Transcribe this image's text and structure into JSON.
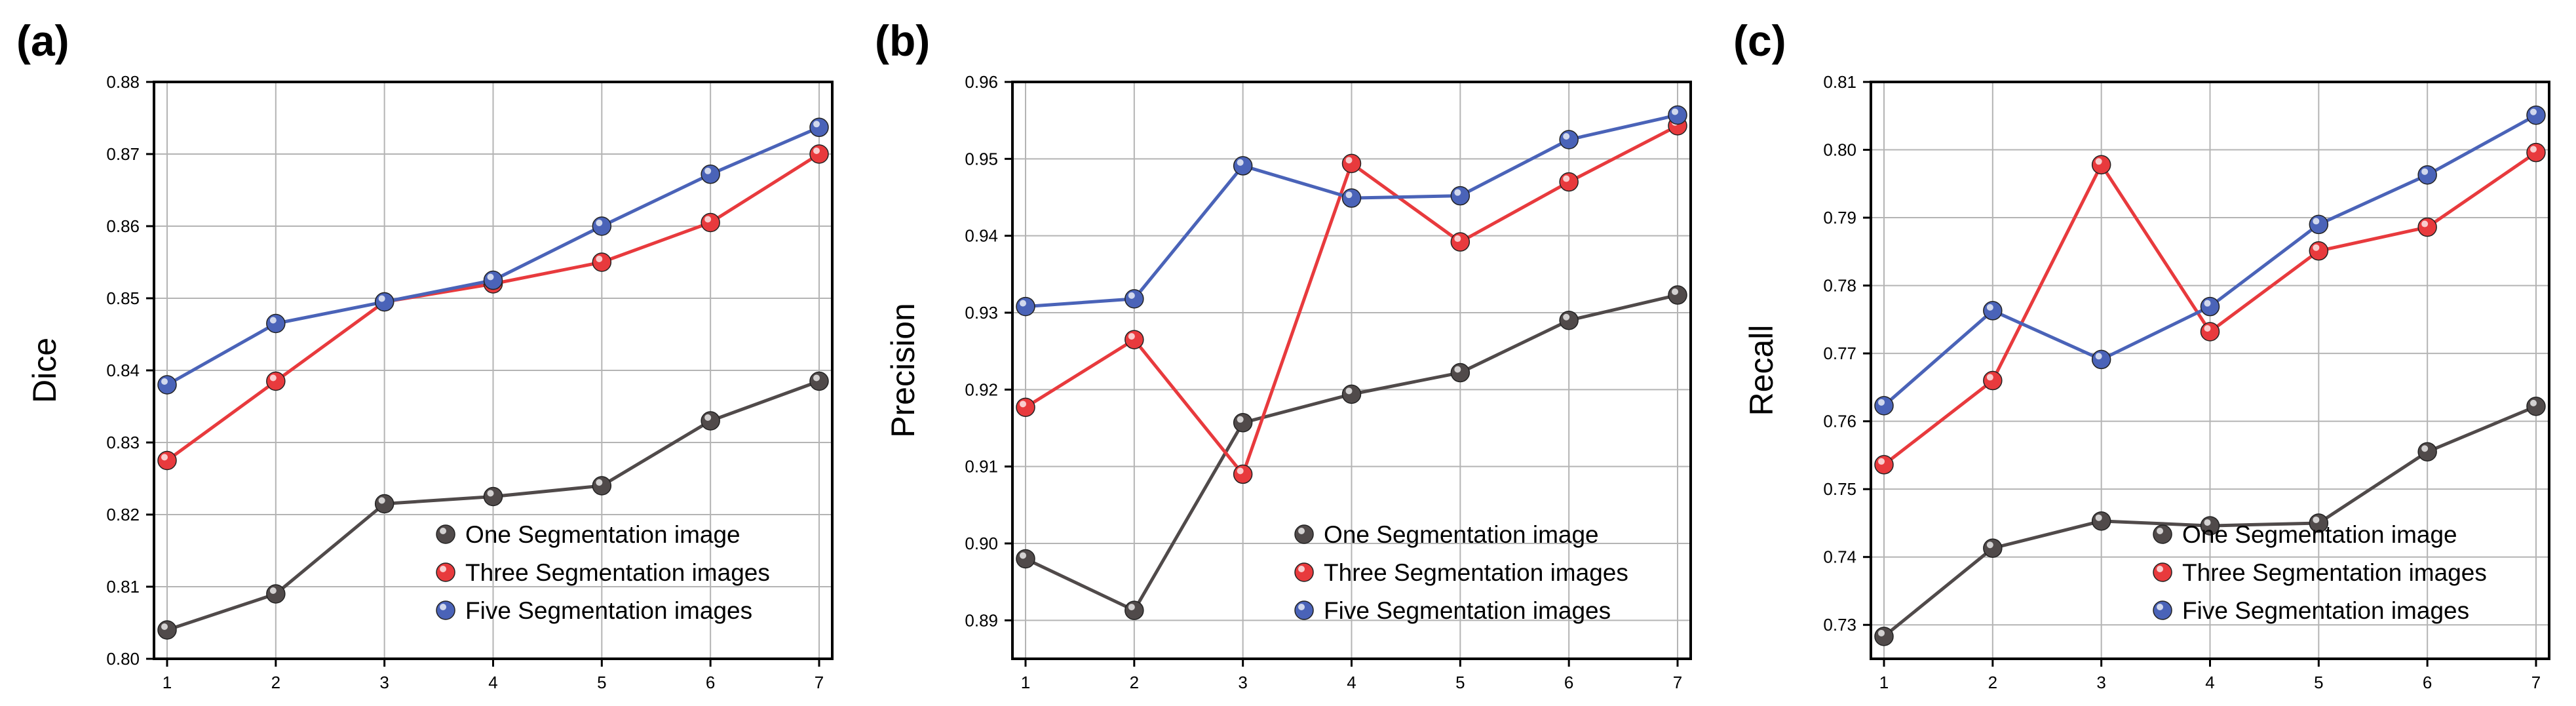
{
  "colors": {
    "one": "#504a4a",
    "three": "#e83a3d",
    "five": "#4a63b8",
    "grid": "#b4b4b4",
    "axis": "#000000"
  },
  "chart_data": [
    {
      "type": "line",
      "panel_label": "(a)",
      "ylabel": "Dice",
      "xlabel": "",
      "categories": [
        1,
        2,
        3,
        4,
        5,
        6,
        7
      ],
      "ylim": [
        0.8,
        0.88
      ],
      "yticks": [
        "0.80",
        "0.81",
        "0.82",
        "0.83",
        "0.84",
        "0.85",
        "0.86",
        "0.87",
        "0.88"
      ],
      "grid": true,
      "legend_position": "bottom-right",
      "series": [
        {
          "name": "One Segmentation image",
          "color_key": "one",
          "values": [
            0.804,
            0.809,
            0.8215,
            0.8225,
            0.824,
            0.833,
            0.8385
          ]
        },
        {
          "name": "Three Segmentation images",
          "color_key": "three",
          "values": [
            0.8275,
            0.8385,
            0.8495,
            0.852,
            0.855,
            0.8605,
            0.87
          ]
        },
        {
          "name": "Five Segmentation images",
          "color_key": "five",
          "values": [
            0.838,
            0.8465,
            0.8495,
            0.8525,
            0.86,
            0.8672,
            0.8737
          ]
        }
      ]
    },
    {
      "type": "line",
      "panel_label": "(b)",
      "ylabel": "Precision",
      "xlabel": "",
      "categories": [
        1,
        2,
        3,
        4,
        5,
        6,
        7
      ],
      "ylim": [
        0.885,
        0.96
      ],
      "yticks": [
        "0.89",
        "0.90",
        "0.91",
        "0.92",
        "0.93",
        "0.94",
        "0.95",
        "0.96"
      ],
      "grid": true,
      "legend_position": "bottom-right",
      "series": [
        {
          "name": "One Segmentation image",
          "color_key": "one",
          "values": [
            0.898,
            0.8913,
            0.9157,
            0.9194,
            0.9222,
            0.929,
            0.9323
          ]
        },
        {
          "name": "Three Segmentation images",
          "color_key": "three",
          "values": [
            0.9177,
            0.9265,
            0.909,
            0.9494,
            0.9392,
            0.947,
            0.9543
          ]
        },
        {
          "name": "Five Segmentation images",
          "color_key": "five",
          "values": [
            0.9308,
            0.9318,
            0.9491,
            0.9449,
            0.9452,
            0.9525,
            0.9557
          ]
        }
      ]
    },
    {
      "type": "line",
      "panel_label": "(c)",
      "ylabel": "Recall",
      "xlabel": "",
      "categories": [
        1,
        2,
        3,
        4,
        5,
        6,
        7
      ],
      "ylim": [
        0.725,
        0.81
      ],
      "yticks": [
        "0.73",
        "0.74",
        "0.75",
        "0.76",
        "0.77",
        "0.78",
        "0.79",
        "0.80",
        "0.81"
      ],
      "grid": true,
      "legend_position": "bottom-right",
      "series": [
        {
          "name": "One Segmentation image",
          "color_key": "one",
          "values": [
            0.7283,
            0.7413,
            0.7453,
            0.7446,
            0.745,
            0.7555,
            0.7622
          ]
        },
        {
          "name": "Three Segmentation images",
          "color_key": "three",
          "values": [
            0.7536,
            0.766,
            0.7978,
            0.7732,
            0.7851,
            0.7886,
            0.7996
          ]
        },
        {
          "name": "Five Segmentation images",
          "color_key": "five",
          "values": [
            0.7623,
            0.7763,
            0.7691,
            0.7769,
            0.789,
            0.7963,
            0.8051
          ]
        }
      ]
    }
  ]
}
